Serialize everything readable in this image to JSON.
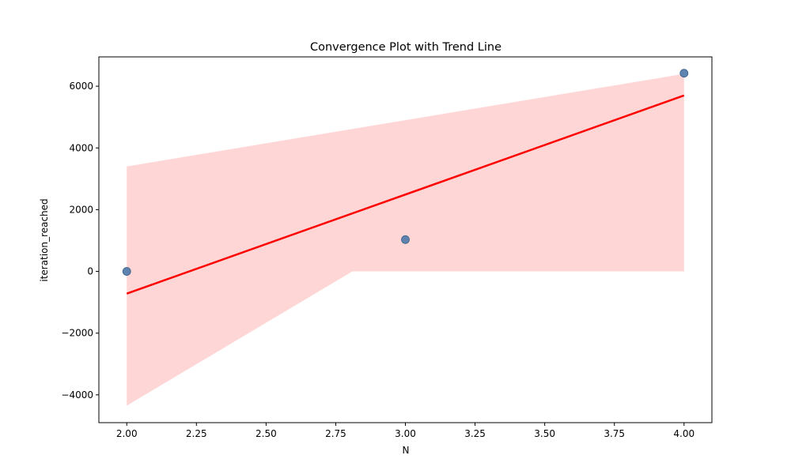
{
  "chart_data": {
    "type": "scatter",
    "title": "Convergence Plot with Trend Line",
    "xlabel": "N",
    "ylabel": "iteration_reached",
    "xlim": [
      1.9,
      4.1
    ],
    "ylim": [
      -4900,
      6950
    ],
    "x_ticks": [
      2.0,
      2.25,
      2.5,
      2.75,
      3.0,
      3.25,
      3.5,
      3.75,
      4.0
    ],
    "x_tick_labels": [
      "2.00",
      "2.25",
      "2.50",
      "2.75",
      "3.00",
      "3.25",
      "3.50",
      "3.75",
      "4.00"
    ],
    "y_ticks": [
      -4000,
      -2000,
      0,
      2000,
      4000,
      6000
    ],
    "y_tick_labels": [
      "−4000",
      "−2000",
      "0",
      "2000",
      "4000",
      "6000"
    ],
    "points": [
      {
        "x": 2.0,
        "y": 0
      },
      {
        "x": 3.0,
        "y": 1030
      },
      {
        "x": 4.0,
        "y": 6420
      }
    ],
    "trend_line": [
      {
        "x": 2.0,
        "y": -720
      },
      {
        "x": 4.0,
        "y": 5700
      }
    ],
    "confidence_band": {
      "upper": [
        {
          "x": 2.0,
          "y": 3400
        },
        {
          "x": 4.0,
          "y": 6400
        }
      ],
      "lower": [
        {
          "x": 2.0,
          "y": -4350
        },
        {
          "x": 2.81,
          "y": 0
        },
        {
          "x": 4.0,
          "y": 0
        }
      ]
    },
    "grid": false,
    "colors": {
      "points": "#4c78a8",
      "trend_line": "#ff0000",
      "band": "#ffd6d6"
    }
  }
}
